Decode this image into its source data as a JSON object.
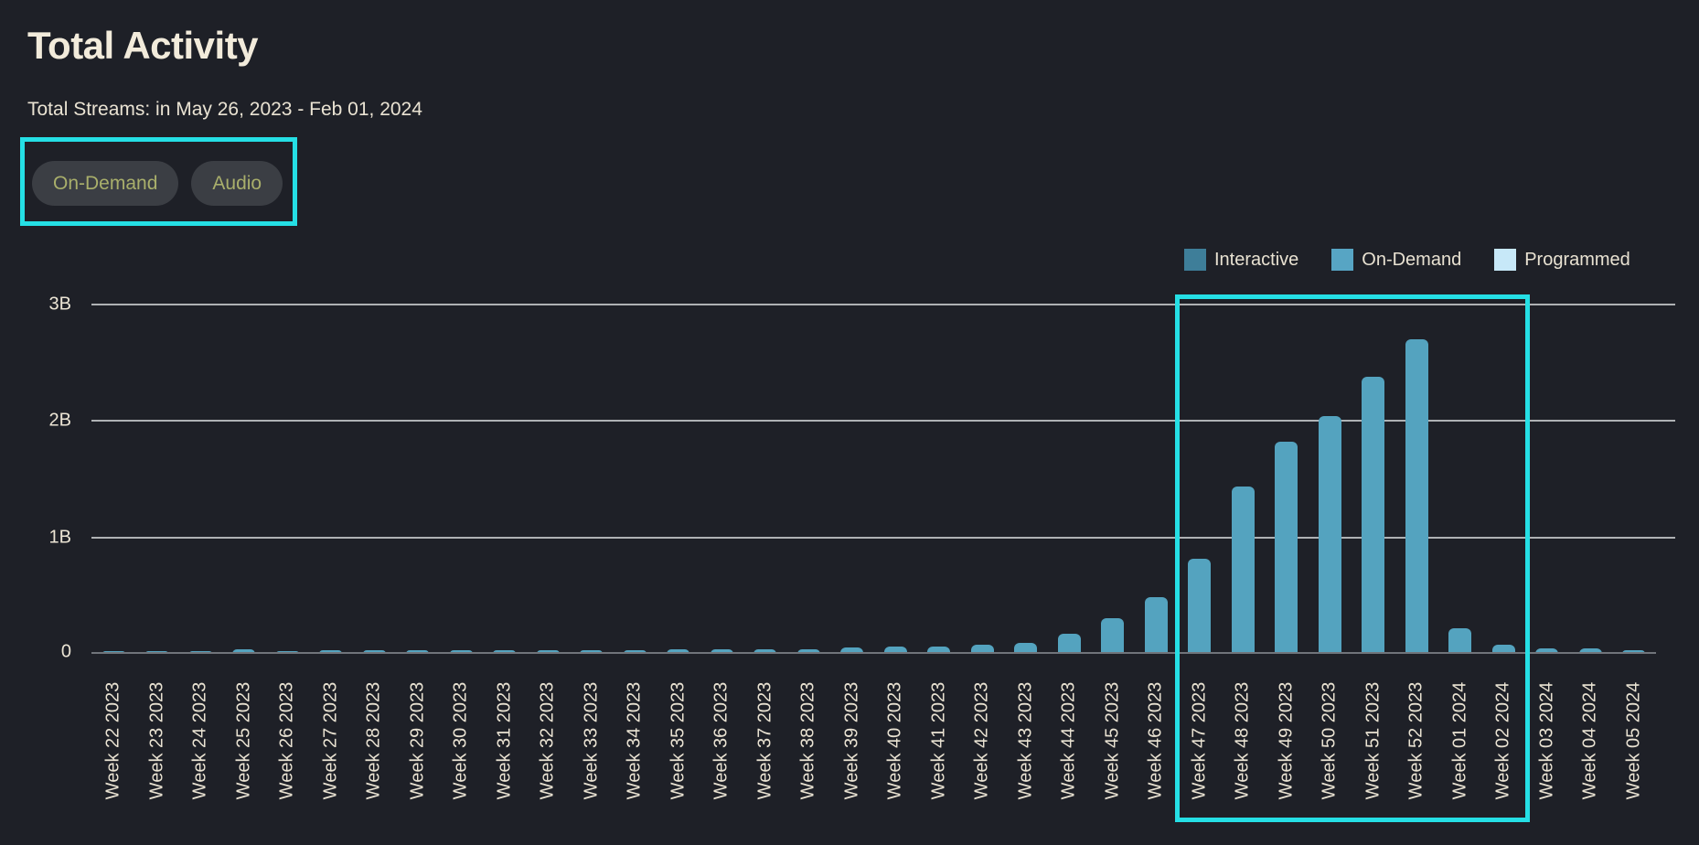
{
  "page": {
    "title": "Total Activity",
    "subtitle": "Total Streams: in May 26, 2023 - Feb 01, 2024"
  },
  "filters": {
    "buttons": [
      {
        "label": "On-Demand"
      },
      {
        "label": "Audio"
      }
    ]
  },
  "legend": {
    "items": [
      {
        "label": "Interactive",
        "color": "#3e7e99"
      },
      {
        "label": "On-Demand",
        "color": "#57a5c4"
      },
      {
        "label": "Programmed",
        "color": "#c7e8f8"
      }
    ]
  },
  "highlights": {
    "color": "#25dfe5",
    "boxes": [
      {
        "name": "filter-buttons-highlight",
        "around": "On-Demand and Audio filter pills"
      },
      {
        "name": "weeks-highlight",
        "around": "Week 47 2023 through Week 02 2024"
      }
    ]
  },
  "colors": {
    "background": "#1e2027",
    "title_text": "#f2ebdb",
    "body_text": "#e9e2d2",
    "button_bg": "#3b3e44",
    "button_text": "#a9af6b",
    "gridline": "#c9ccce",
    "axis_line": "#70747a",
    "bar": "#54a3bf",
    "highlight": "#25dfe5"
  },
  "chart_data": {
    "type": "bar",
    "title": "Total Activity",
    "subtitle": "Total Streams: in May 26, 2023 - Feb 01, 2024",
    "unit": "streams (billions)",
    "visible_series": "On-Demand",
    "bar_color": "#54a3bf",
    "grid": true,
    "legend_position": "top-right",
    "legend_entries": [
      "Interactive",
      "On-Demand",
      "Programmed"
    ],
    "ylim": [
      0,
      3.15
    ],
    "y_ticks": [
      {
        "value": 0,
        "label": "0"
      },
      {
        "value": 1,
        "label": "1B"
      },
      {
        "value": 2,
        "label": "2B"
      },
      {
        "value": 3,
        "label": "3B"
      }
    ],
    "categories": [
      "Week 22 2023",
      "Week 23 2023",
      "Week 24 2023",
      "Week 25 2023",
      "Week 26 2023",
      "Week 27 2023",
      "Week 28 2023",
      "Week 29 2023",
      "Week 30 2023",
      "Week 31 2023",
      "Week 32 2023",
      "Week 33 2023",
      "Week 34 2023",
      "Week 35 2023",
      "Week 36 2023",
      "Week 37 2023",
      "Week 38 2023",
      "Week 39 2023",
      "Week 40 2023",
      "Week 41 2023",
      "Week 42 2023",
      "Week 43 2023",
      "Week 44 2023",
      "Week 45 2023",
      "Week 46 2023",
      "Week 47 2023",
      "Week 48 2023",
      "Week 49 2023",
      "Week 50 2023",
      "Week 51 2023",
      "Week 52 2023",
      "Week 01 2024",
      "Week 02 2024",
      "Week 03 2024",
      "Week 04 2024",
      "Week 05 2024"
    ],
    "values": [
      0.025,
      0.025,
      0.025,
      0.04,
      0.025,
      0.03,
      0.03,
      0.03,
      0.03,
      0.03,
      0.03,
      0.03,
      0.03,
      0.04,
      0.04,
      0.04,
      0.04,
      0.055,
      0.06,
      0.065,
      0.08,
      0.095,
      0.17,
      0.31,
      0.49,
      0.82,
      1.44,
      1.82,
      2.04,
      2.38,
      2.7,
      0.22,
      0.08,
      0.045,
      0.045,
      0.03
    ]
  }
}
